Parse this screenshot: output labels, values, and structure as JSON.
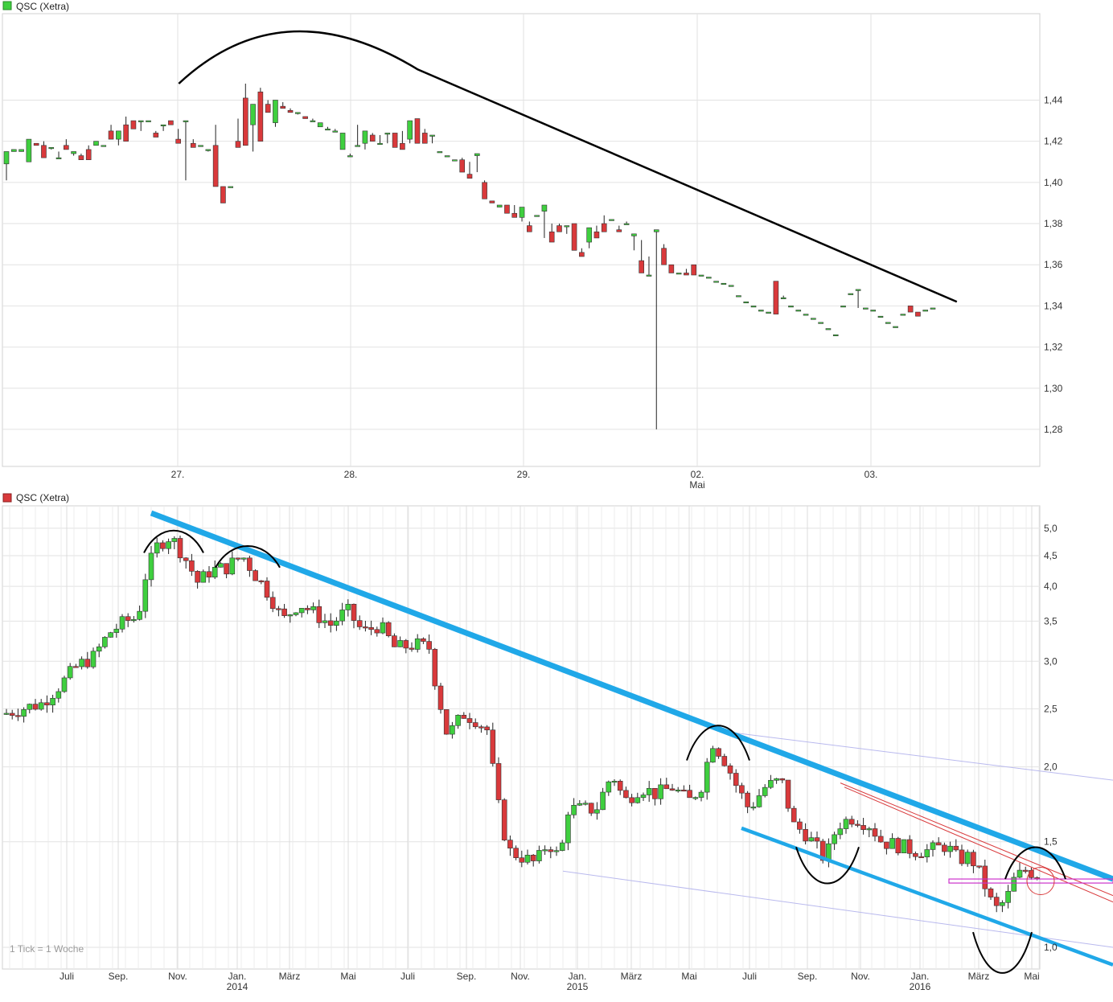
{
  "chart_data": [
    {
      "type": "candlestick",
      "title": "QSC (Xetra)",
      "legend_color": "#3fcf3f",
      "yticks": [
        "1,28",
        "1,30",
        "1,32",
        "1,34",
        "1,36",
        "1,38",
        "1,40",
        "1,42",
        "1,44"
      ],
      "xticks": [
        "27.",
        "28.",
        "29.",
        "02.",
        "03."
      ],
      "xticks_sub": [
        "Mai"
      ],
      "ylim": [
        1.262,
        1.482
      ],
      "grid": true,
      "colors": {
        "up": "#3fcf3f",
        "down": "#d9393b",
        "trend": "#000000"
      },
      "candles": [
        [
          1.409,
          1.415,
          1.401,
          1.415,
          1.401
        ],
        [
          1.415,
          1.416,
          1.415,
          1.416,
          1.416
        ],
        [
          1.415,
          1.416,
          1.415,
          1.416,
          1.416
        ],
        [
          1.41,
          1.421,
          1.41,
          1.421,
          1.41
        ],
        [
          1.419,
          1.419,
          1.418,
          1.419,
          1.418
        ],
        [
          1.418,
          1.42,
          1.412,
          1.42,
          1.412
        ],
        [
          1.417,
          1.417,
          1.416,
          1.417,
          1.416
        ],
        [
          1.412,
          1.415,
          1.412,
          1.415,
          1.412
        ],
        [
          1.418,
          1.421,
          1.416,
          1.421,
          1.416
        ],
        [
          1.414,
          1.415,
          1.413,
          1.415,
          1.413
        ],
        [
          1.413,
          1.414,
          1.411,
          1.414,
          1.411
        ],
        [
          1.416,
          1.418,
          1.411,
          1.418,
          1.411
        ],
        [
          1.418,
          1.42,
          1.418,
          1.42,
          1.418
        ],
        [
          1.418,
          1.418,
          1.418,
          1.418,
          1.418
        ],
        [
          1.425,
          1.428,
          1.421,
          1.428,
          1.421
        ],
        [
          1.421,
          1.425,
          1.418,
          1.425,
          1.418
        ],
        [
          1.428,
          1.432,
          1.42,
          1.432,
          1.42
        ],
        [
          1.43,
          1.43,
          1.426,
          1.43,
          1.426
        ],
        [
          1.43,
          1.43,
          1.425,
          1.43,
          1.425
        ],
        [
          1.43,
          1.43,
          1.43,
          1.43,
          1.43
        ],
        [
          1.424,
          1.425,
          1.422,
          1.425,
          1.422
        ],
        [
          1.428,
          1.428,
          1.425,
          1.428,
          1.425
        ],
        [
          1.43,
          1.43,
          1.428,
          1.43,
          1.428
        ],
        [
          1.421,
          1.426,
          1.419,
          1.426,
          1.419
        ],
        [
          1.43,
          1.43,
          1.401,
          1.43,
          1.401
        ],
        [
          1.419,
          1.421,
          1.417,
          1.421,
          1.417
        ],
        [
          1.418,
          1.418,
          1.418,
          1.418,
          1.418
        ],
        [
          1.416,
          1.416,
          1.415,
          1.416,
          1.415
        ],
        [
          1.418,
          1.428,
          1.398,
          1.428,
          1.398
        ],
        [
          1.398,
          1.398,
          1.39,
          1.398,
          1.39
        ],
        [
          1.398,
          1.398,
          1.398,
          1.398,
          1.398
        ],
        [
          1.42,
          1.431,
          1.417,
          1.431,
          1.417
        ],
        [
          1.441,
          1.448,
          1.418,
          1.448,
          1.418
        ],
        [
          1.428,
          1.438,
          1.415,
          1.438,
          1.415
        ],
        [
          1.444,
          1.446,
          1.42,
          1.446,
          1.42
        ],
        [
          1.438,
          1.44,
          1.434,
          1.44,
          1.434
        ],
        [
          1.429,
          1.44,
          1.427,
          1.44,
          1.427
        ],
        [
          1.437,
          1.439,
          1.436,
          1.439,
          1.436
        ],
        [
          1.435,
          1.436,
          1.434,
          1.436,
          1.434
        ],
        [
          1.434,
          1.434,
          1.433,
          1.434,
          1.433
        ],
        [
          1.432,
          1.432,
          1.431,
          1.432,
          1.431
        ],
        [
          1.43,
          1.431,
          1.43,
          1.431,
          1.43
        ],
        [
          1.427,
          1.429,
          1.427,
          1.429,
          1.427
        ],
        [
          1.426,
          1.427,
          1.426,
          1.427,
          1.426
        ],
        [
          1.425,
          1.426,
          1.425,
          1.426,
          1.425
        ],
        [
          1.416,
          1.424,
          1.416,
          1.424,
          1.416
        ],
        [
          1.413,
          1.414,
          1.413,
          1.414,
          1.413
        ],
        [
          1.418,
          1.428,
          1.418,
          1.428,
          1.418
        ],
        [
          1.419,
          1.425,
          1.416,
          1.425,
          1.416
        ],
        [
          1.423,
          1.424,
          1.42,
          1.424,
          1.42
        ],
        [
          1.419,
          1.423,
          1.419,
          1.423,
          1.419
        ],
        [
          1.424,
          1.424,
          1.419,
          1.424,
          1.419
        ],
        [
          1.424,
          1.424,
          1.417,
          1.424,
          1.417
        ],
        [
          1.419,
          1.425,
          1.416,
          1.425,
          1.416
        ],
        [
          1.421,
          1.43,
          1.419,
          1.43,
          1.419
        ],
        [
          1.431,
          1.431,
          1.419,
          1.431,
          1.419
        ],
        [
          1.424,
          1.426,
          1.419,
          1.426,
          1.419
        ],
        [
          1.423,
          1.423,
          1.419,
          1.423,
          1.419
        ],
        [
          1.415,
          1.415,
          1.415,
          1.415,
          1.415
        ],
        [
          1.413,
          1.413,
          1.413,
          1.413,
          1.413
        ],
        [
          1.411,
          1.411,
          1.411,
          1.411,
          1.411
        ],
        [
          1.411,
          1.412,
          1.405,
          1.412,
          1.405
        ],
        [
          1.404,
          1.41,
          1.402,
          1.41,
          1.402
        ],
        [
          1.413,
          1.414,
          1.405,
          1.414,
          1.405
        ],
        [
          1.4,
          1.401,
          1.392,
          1.401,
          1.392
        ],
        [
          1.391,
          1.391,
          1.39,
          1.391,
          1.39
        ],
        [
          1.388,
          1.389,
          1.388,
          1.389,
          1.388
        ],
        [
          1.389,
          1.389,
          1.385,
          1.389,
          1.385
        ],
        [
          1.385,
          1.389,
          1.383,
          1.389,
          1.383
        ],
        [
          1.383,
          1.388,
          1.381,
          1.388,
          1.381
        ],
        [
          1.379,
          1.381,
          1.376,
          1.381,
          1.376
        ],
        [
          1.384,
          1.384,
          1.384,
          1.384,
          1.384
        ],
        [
          1.386,
          1.389,
          1.373,
          1.389,
          1.373
        ],
        [
          1.376,
          1.38,
          1.371,
          1.38,
          1.371
        ],
        [
          1.379,
          1.38,
          1.376,
          1.38,
          1.376
        ],
        [
          1.379,
          1.379,
          1.375,
          1.379,
          1.375
        ],
        [
          1.38,
          1.38,
          1.367,
          1.38,
          1.367
        ],
        [
          1.366,
          1.368,
          1.364,
          1.368,
          1.364
        ],
        [
          1.371,
          1.378,
          1.368,
          1.378,
          1.368
        ],
        [
          1.376,
          1.379,
          1.373,
          1.379,
          1.373
        ],
        [
          1.38,
          1.384,
          1.376,
          1.384,
          1.376
        ],
        [
          1.382,
          1.382,
          1.382,
          1.382,
          1.382
        ],
        [
          1.377,
          1.379,
          1.376,
          1.379,
          1.376
        ],
        [
          1.38,
          1.381,
          1.38,
          1.381,
          1.38
        ],
        [
          1.374,
          1.375,
          1.367,
          1.375,
          1.367
        ],
        [
          1.362,
          1.372,
          1.356,
          1.372,
          1.356
        ],
        [
          1.355,
          1.364,
          1.355,
          1.364,
          1.355
        ],
        [
          1.376,
          1.377,
          1.28,
          1.377,
          1.28
        ],
        [
          1.368,
          1.37,
          1.36,
          1.37,
          1.36
        ],
        [
          1.36,
          1.36,
          1.356,
          1.36,
          1.356
        ],
        [
          1.356,
          1.356,
          1.356,
          1.356,
          1.356
        ],
        [
          1.356,
          1.358,
          1.355,
          1.358,
          1.355
        ],
        [
          1.36,
          1.36,
          1.355,
          1.36,
          1.355
        ],
        [
          1.355,
          1.355,
          1.355,
          1.355,
          1.355
        ],
        [
          1.354,
          1.354,
          1.354,
          1.354,
          1.354
        ],
        [
          1.352,
          1.352,
          1.352,
          1.352,
          1.352
        ],
        [
          1.351,
          1.351,
          1.351,
          1.351,
          1.351
        ],
        [
          1.35,
          1.35,
          1.35,
          1.35,
          1.35
        ],
        [
          1.345,
          1.345,
          1.345,
          1.345,
          1.345
        ],
        [
          1.342,
          1.342,
          1.342,
          1.342,
          1.342
        ],
        [
          1.34,
          1.34,
          1.34,
          1.34,
          1.34
        ],
        [
          1.338,
          1.338,
          1.338,
          1.338,
          1.338
        ],
        [
          1.337,
          1.337,
          1.337,
          1.337,
          1.337
        ],
        [
          1.352,
          1.352,
          1.336,
          1.352,
          1.336
        ],
        [
          1.344,
          1.345,
          1.344,
          1.345,
          1.344
        ],
        [
          1.34,
          1.34,
          1.34,
          1.34,
          1.34
        ],
        [
          1.338,
          1.338,
          1.338,
          1.338,
          1.338
        ],
        [
          1.336,
          1.336,
          1.336,
          1.336,
          1.336
        ],
        [
          1.334,
          1.334,
          1.334,
          1.334,
          1.334
        ],
        [
          1.332,
          1.332,
          1.332,
          1.332,
          1.332
        ],
        [
          1.329,
          1.329,
          1.329,
          1.329,
          1.329
        ],
        [
          1.326,
          1.326,
          1.326,
          1.326,
          1.326
        ],
        [
          1.34,
          1.34,
          1.34,
          1.34,
          1.34
        ],
        [
          1.346,
          1.346,
          1.346,
          1.346,
          1.346
        ],
        [
          1.348,
          1.348,
          1.339,
          1.348,
          1.339
        ],
        [
          1.339,
          1.339,
          1.339,
          1.339,
          1.339
        ],
        [
          1.338,
          1.338,
          1.338,
          1.338,
          1.338
        ],
        [
          1.335,
          1.335,
          1.335,
          1.335,
          1.335
        ],
        [
          1.332,
          1.332,
          1.332,
          1.332,
          1.332
        ],
        [
          1.33,
          1.33,
          1.33,
          1.33,
          1.33
        ],
        [
          1.336,
          1.336,
          1.336,
          1.336,
          1.336
        ],
        [
          1.34,
          1.34,
          1.337,
          1.34,
          1.337
        ],
        [
          1.337,
          1.337,
          1.335,
          1.337,
          1.335
        ],
        [
          1.338,
          1.338,
          1.338,
          1.338,
          1.338
        ],
        [
          1.339,
          1.339,
          1.339,
          1.339,
          1.339
        ]
      ],
      "trendline": [
        [
          0.17,
          1.448
        ],
        [
          0.27,
          1.479
        ],
        [
          0.5,
          1.428
        ],
        [
          0.75,
          1.386
        ],
        [
          0.92,
          1.342
        ]
      ]
    },
    {
      "type": "candlestick",
      "title": "QSC (Xetra)",
      "legend_color": "#d9393b",
      "yticks": [
        "1,0",
        "1,5",
        "2,0",
        "2,5",
        "3,0",
        "3,5",
        "4,0",
        "4,5",
        "5,0"
      ],
      "xticks": [
        "Juli",
        "Sep.",
        "Nov.",
        "Jan.",
        "März",
        "Mai",
        "Juli",
        "Sep.",
        "Nov.",
        "Jan.",
        "März",
        "Mai",
        "Juli",
        "Sep.",
        "Nov.",
        "Jan.",
        "März",
        "Mai"
      ],
      "year_labels": [
        [
          "Jan.",
          "2014"
        ],
        [
          "Jan.",
          "2015"
        ],
        [
          "Jan.",
          "2016"
        ]
      ],
      "footnote": "1 Tick = 1 Woche",
      "scale": "log",
      "ylim": [
        0.92,
        5.45
      ],
      "grid": true,
      "colors": {
        "up": "#3fcf3f",
        "down": "#d9393b",
        "trend": "#20a8e8",
        "bell": "#000000",
        "channel_red": "#d9393b",
        "fine": "#b9b9ee",
        "box": "#cc33cc"
      }
    }
  ]
}
